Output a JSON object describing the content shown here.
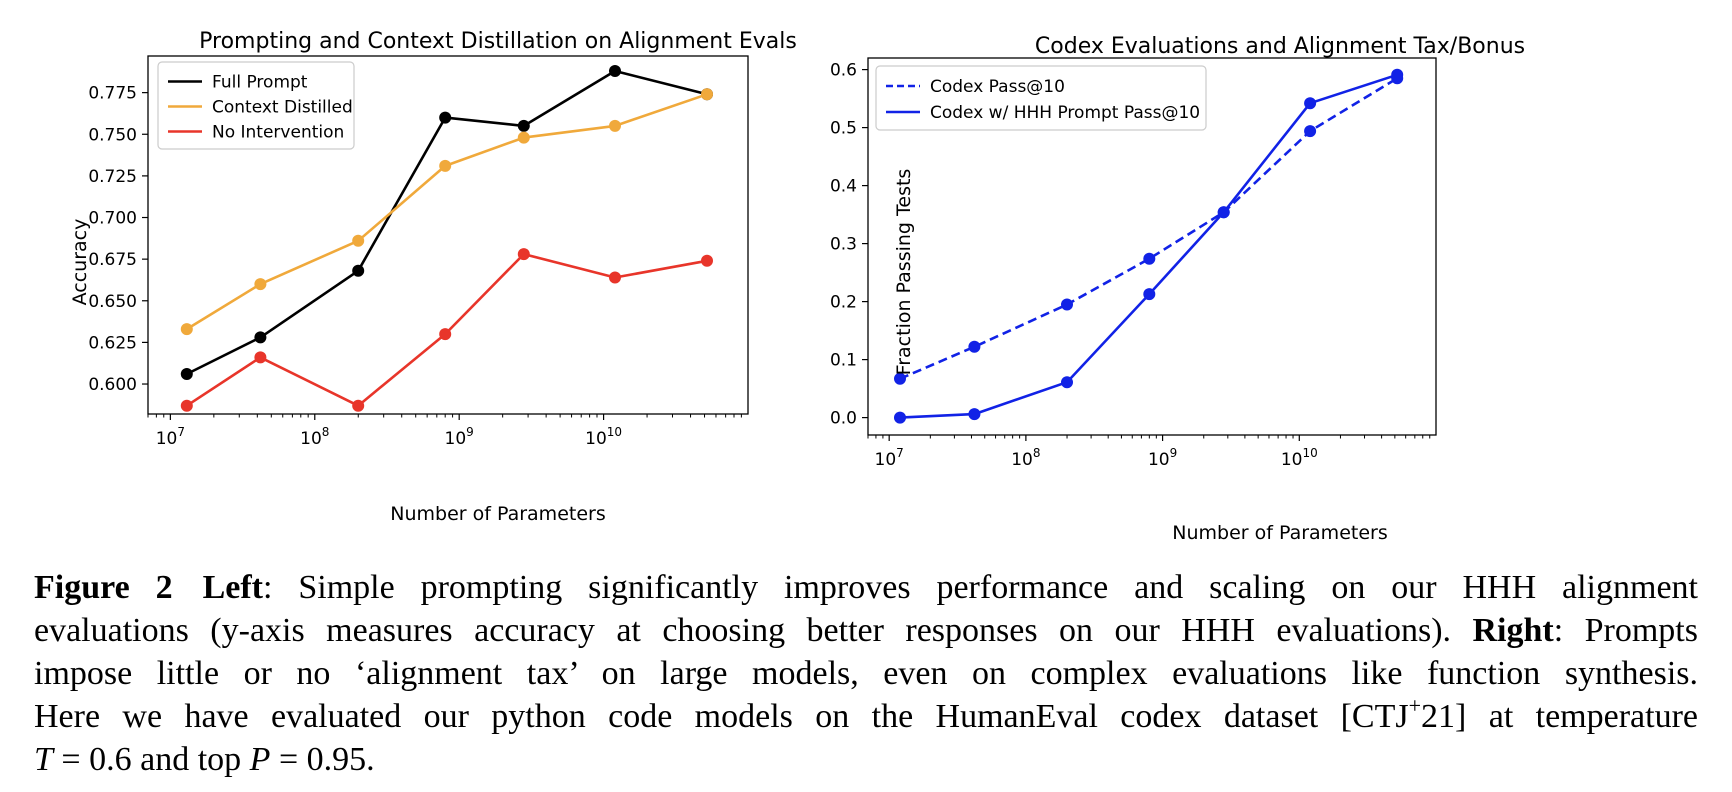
{
  "chart_data": [
    {
      "type": "line",
      "title": "Prompting and Context Distillation on Alignment Evals",
      "xlabel": "Number of Parameters",
      "ylabel": "Accuracy",
      "xscale": "log",
      "xlim": [
        7000000,
        100000000000
      ],
      "ylim": [
        0.582,
        0.797
      ],
      "xticks": [
        10000000,
        100000000,
        1000000000,
        10000000000
      ],
      "xtick_labels": [
        {
          "base": "10",
          "exp": "7"
        },
        {
          "base": "10",
          "exp": "8"
        },
        {
          "base": "10",
          "exp": "9"
        },
        {
          "base": "10",
          "exp": "10"
        }
      ],
      "yticks": [
        0.6,
        0.625,
        0.65,
        0.675,
        0.7,
        0.725,
        0.75,
        0.775
      ],
      "ytick_labels": [
        "0.600",
        "0.625",
        "0.650",
        "0.675",
        "0.700",
        "0.725",
        "0.750",
        "0.775"
      ],
      "legend_position": "top-left",
      "grid": false,
      "x": [
        13000000,
        42000000,
        200000000,
        800000000,
        2800000000,
        12000000000,
        52000000000
      ],
      "series": [
        {
          "name": "Full Prompt",
          "color": "#000000",
          "dash": "solid",
          "values": [
            0.606,
            0.628,
            0.668,
            0.76,
            0.755,
            0.788,
            0.774
          ]
        },
        {
          "name": "Context Distilled",
          "color": "#f0a93b",
          "dash": "solid",
          "values": [
            0.633,
            0.66,
            0.686,
            0.731,
            0.748,
            0.755,
            0.774
          ]
        },
        {
          "name": "No Intervention",
          "color": "#e8352a",
          "dash": "solid",
          "values": [
            0.587,
            0.616,
            0.587,
            0.63,
            0.678,
            0.664,
            0.674
          ]
        }
      ]
    },
    {
      "type": "line",
      "title": "Codex Evaluations and Alignment Tax/Bonus",
      "xlabel": "Number of Parameters",
      "ylabel": "Fraction Passing Tests",
      "xscale": "log",
      "xlim": [
        7000000,
        100000000000
      ],
      "ylim": [
        -0.03,
        0.62
      ],
      "xticks": [
        10000000,
        100000000,
        1000000000,
        10000000000
      ],
      "xtick_labels": [
        {
          "base": "10",
          "exp": "7"
        },
        {
          "base": "10",
          "exp": "8"
        },
        {
          "base": "10",
          "exp": "9"
        },
        {
          "base": "10",
          "exp": "10"
        }
      ],
      "yticks": [
        0.0,
        0.1,
        0.2,
        0.3,
        0.4,
        0.5,
        0.6
      ],
      "ytick_labels": [
        "0.0",
        "0.1",
        "0.2",
        "0.3",
        "0.4",
        "0.5",
        "0.6"
      ],
      "legend_position": "top-left",
      "grid": false,
      "x": [
        12000000,
        42000000,
        200000000,
        800000000,
        2800000000,
        12000000000,
        52000000000
      ],
      "series": [
        {
          "name": "Codex Pass@10",
          "color": "#1122e6",
          "dash": "dashed",
          "values": [
            0.067,
            0.122,
            0.195,
            0.274,
            0.354,
            0.494,
            0.585
          ]
        },
        {
          "name": "Codex w/ HHH Prompt Pass@10",
          "color": "#1122e6",
          "dash": "solid",
          "values": [
            0.0,
            0.006,
            0.061,
            0.213,
            0.354,
            0.542,
            0.591
          ]
        }
      ]
    }
  ],
  "caption": {
    "figure_label": "Figure 2",
    "left_label": "Left",
    "left_text": ": Simple prompting significantly improves performance and scaling on our HHH alignment",
    "left_text_2": "evaluations (y-axis measures accuracy at choosing better responses on our HHH evaluations). ",
    "right_label": "Right",
    "right_text": ": Prompts",
    "line3": "impose little or no ‘alignment tax’ on large models, even on complex evaluations like function synthesis.",
    "line4_a": "Here we have evaluated our python code models on the HumanEval codex dataset [CTJ",
    "line4_sup": "+",
    "line4_b": "21] at temperature",
    "t_var": "T",
    "t_val": " = 0.6",
    "and_top": " and top ",
    "p_var": "P",
    "p_val": " = 0.95."
  }
}
